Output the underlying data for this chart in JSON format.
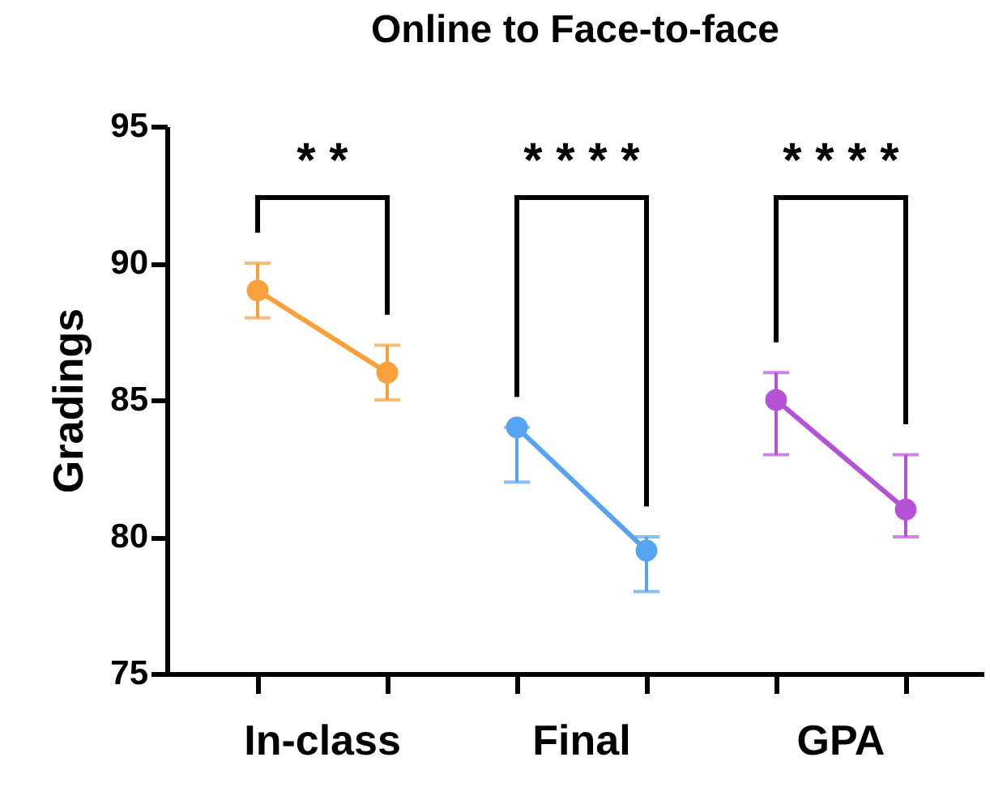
{
  "chart_data": {
    "type": "line",
    "title": "Online to Face-to-face",
    "ylabel": "Gradings",
    "categories": [
      null,
      null,
      null,
      null,
      null,
      null
    ],
    "ylim": [
      75,
      95
    ],
    "yticks": [
      75,
      80,
      85,
      90,
      95
    ],
    "series": [
      {
        "color": "#f7a03c",
        "values": [
          89,
          86,
          null,
          null,
          null,
          null
        ],
        "errors": [
          [
            88,
            90
          ],
          [
            85,
            87
          ],
          null,
          null,
          null,
          null
        ]
      },
      {
        "color": "#56a3f2",
        "values": [
          null,
          null,
          84,
          79.5,
          null,
          null
        ],
        "errors": [
          null,
          null,
          [
            82,
            84
          ],
          [
            78,
            80
          ],
          null,
          null
        ]
      },
      {
        "color": "#b553d6",
        "values": [
          null,
          null,
          null,
          null,
          85,
          81
        ],
        "errors": [
          null,
          null,
          null,
          null,
          [
            83,
            86
          ],
          [
            80,
            83
          ]
        ]
      }
    ],
    "annotations": [
      "In-class",
      "Final",
      "GPA",
      "* *",
      "* * * *",
      "* * * *"
    ],
    "marker": "circle",
    "line_style": "solid",
    "grid": false
  }
}
